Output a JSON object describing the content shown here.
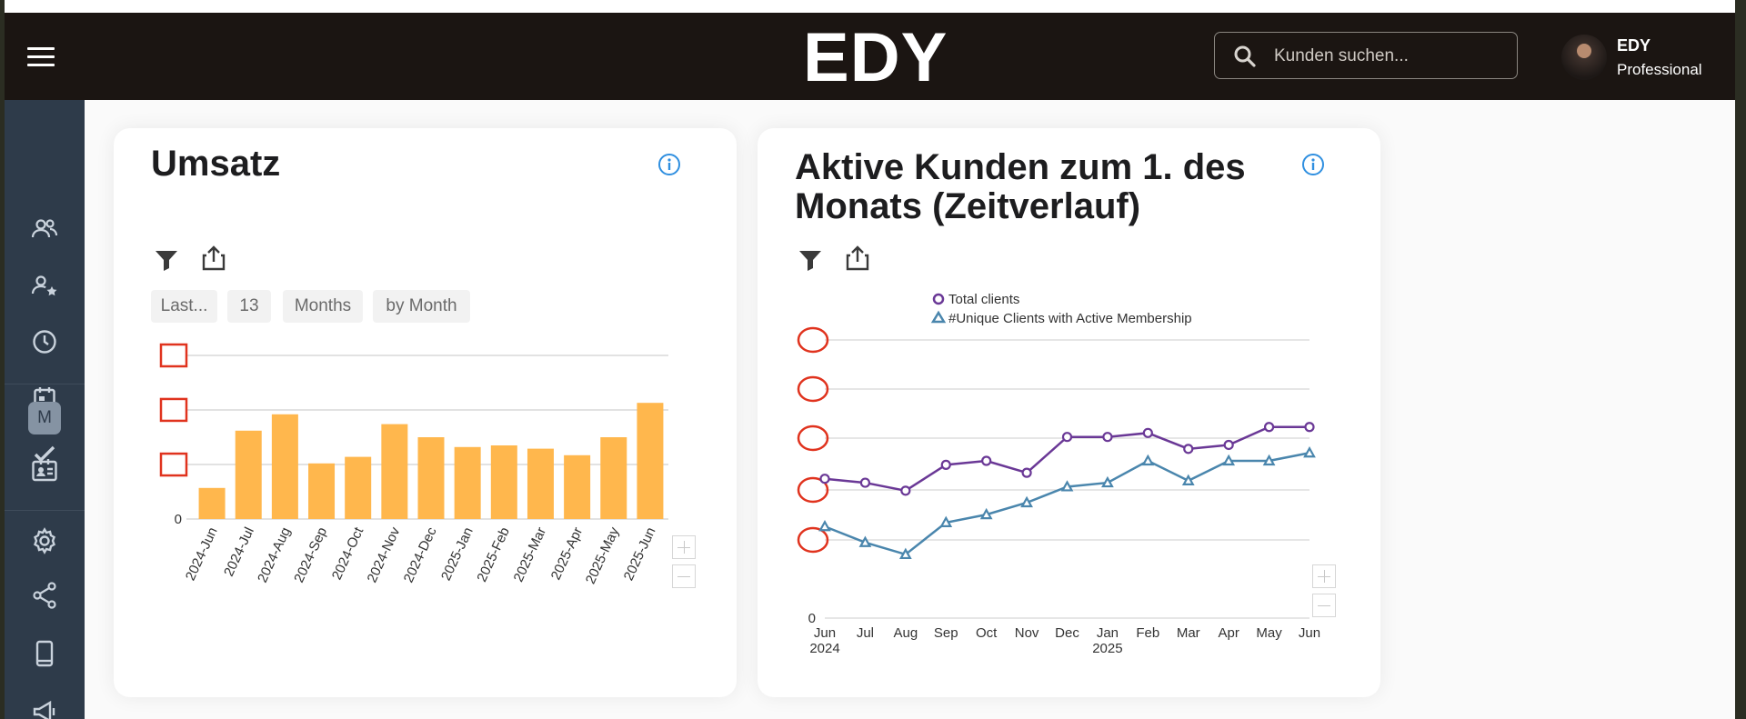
{
  "header": {
    "logo": "EDY",
    "search_placeholder": "Kunden suchen...",
    "user_name": "EDY",
    "user_role": "Professional"
  },
  "sidebar": {
    "items": [
      {
        "icon": "users-icon"
      },
      {
        "icon": "user-star-icon"
      },
      {
        "icon": "clock-icon"
      },
      {
        "icon": "calendar-icon"
      },
      {
        "icon": "check-icon"
      },
      {
        "icon": "m-badge-icon",
        "label": "M"
      },
      {
        "icon": "id-card-icon"
      },
      {
        "icon": "gear-icon"
      },
      {
        "icon": "share-icon"
      },
      {
        "icon": "phone-icon"
      },
      {
        "icon": "megaphone-icon"
      }
    ]
  },
  "colors": {
    "bar": "#ffb74d",
    "line_total": "#6a3896",
    "line_unique": "#4a86ad",
    "marker_red": "#e0331e",
    "info_blue": "#2f8fe0"
  },
  "cards": {
    "revenue": {
      "title": "Umsatz",
      "filters": [
        "Last...",
        "13",
        "Months",
        "by Month"
      ]
    },
    "clients": {
      "title": "Aktive Kunden zum 1. des Monats (Zeitverlauf)"
    }
  },
  "chart_data": [
    {
      "type": "bar",
      "title": "Umsatz",
      "categories": [
        "2024-Jun",
        "2024-Jul",
        "2024-Aug",
        "2024-Sep",
        "2024-Oct",
        "2024-Nov",
        "2024-Dec",
        "2025-Jan",
        "2025-Feb",
        "2025-Mar",
        "2025-Apr",
        "2025-May",
        "2025-Jun"
      ],
      "values": [
        19,
        54,
        64,
        34,
        38,
        58,
        50,
        44,
        45,
        43,
        39,
        50,
        71
      ],
      "ylim": [
        0,
        100
      ],
      "y_tick_labels": [
        "0"
      ],
      "grid": true
    },
    {
      "type": "line",
      "title": "Aktive Kunden zum 1. des Monats (Zeitverlauf)",
      "x": [
        "Jun",
        "Jul",
        "Aug",
        "Sep",
        "Oct",
        "Nov",
        "Dec",
        "Jan",
        "Feb",
        "Mar",
        "Apr",
        "May",
        "Jun"
      ],
      "x_year_labels": [
        {
          "index": 0,
          "label": "2024"
        },
        {
          "index": 7,
          "label": "2025"
        }
      ],
      "series": [
        {
          "name": "Total clients",
          "marker": "circle",
          "values": [
            70,
            68,
            64,
            77,
            79,
            73,
            91,
            91,
            93,
            85,
            87,
            96,
            96
          ]
        },
        {
          "name": "#Unique Clients with Active Membership",
          "marker": "triangle",
          "values": [
            46,
            38,
            32,
            48,
            52,
            58,
            66,
            68,
            79,
            69,
            79,
            79,
            83
          ]
        }
      ],
      "ylim": [
        0,
        100
      ],
      "y_tick_labels": [
        "0"
      ],
      "legend": "top",
      "grid": true
    }
  ]
}
